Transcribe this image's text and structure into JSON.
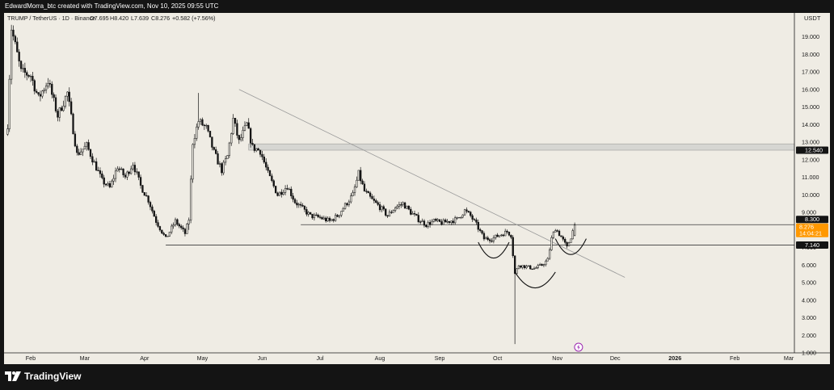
{
  "header": {
    "attribution": "EdwardMorra_btc created with TradingView.com, Nov 10, 2025 09:55 UTC"
  },
  "legend": {
    "symbol": "TRUMP / TetherUS · 1D · Binance",
    "open": "O7.695",
    "high": "H8.420",
    "low": "L7.639",
    "close": "C8.276",
    "change": "+0.582 (+7.56%)"
  },
  "footer": {
    "brand": "TradingView"
  },
  "colors": {
    "background": "#efece4",
    "candle_body": "#141414",
    "candle_up_fill": "#efece4",
    "trendline": "#9a9a9a",
    "level_line": "#3a3a3a",
    "resistance_zone": "#d6d6d2",
    "current_price_badge": "#ff9800",
    "price_badge": "#141414",
    "event_icon": "#9c27b0"
  },
  "chart_data": {
    "type": "candlestick",
    "title": "",
    "currency": "USDT",
    "ylim": [
      0.6,
      20.5
    ],
    "y_ticks": [
      "19.000",
      "18.000",
      "17.000",
      "16.000",
      "15.000",
      "14.000",
      "13.000",
      "12.000",
      "11.000",
      "10.000",
      "9.000",
      "8.000",
      "7.000",
      "6.000",
      "5.000",
      "4.000",
      "3.000",
      "2.000",
      "1.000"
    ],
    "x_ticks": [
      "Feb",
      "Mar",
      "Apr",
      "May",
      "Jun",
      "Jul",
      "Aug",
      "Sep",
      "Oct",
      "Nov",
      "Dec",
      "2026",
      "Feb",
      "Mar"
    ],
    "price_badges": [
      {
        "value": 12.54,
        "label": "12.540",
        "kind": "level"
      },
      {
        "value": 8.3,
        "label": "8.300",
        "kind": "level"
      },
      {
        "value": 8.276,
        "label": "8.276",
        "sublabel": "14:04:21",
        "kind": "current"
      },
      {
        "value": 7.14,
        "label": "7.140",
        "kind": "level"
      }
    ],
    "horizontal_levels": [
      {
        "value": 7.14,
        "from": "2025-04-12",
        "to_right_edge": true
      },
      {
        "value": 8.3,
        "from": "2025-06-21",
        "to_right_edge": true
      }
    ],
    "resistance_zone": {
      "top": 12.9,
      "bottom": 12.54,
      "from": "2025-05-25"
    },
    "trendline": {
      "from": [
        "2025-05-20",
        16.0
      ],
      "to": [
        "2025-12-06",
        5.3
      ]
    },
    "arcs": [
      {
        "from": "2025-09-21",
        "to": "2025-10-07",
        "depth_to": 6.4
      },
      {
        "from": "2025-10-10",
        "to": "2025-10-31",
        "depth_to": 4.7
      },
      {
        "from": "2025-10-31",
        "to": "2025-11-16",
        "depth_to": 6.6
      }
    ],
    "event_marker": {
      "date": "2025-11-12",
      "icon": "lightning-icon"
    },
    "price_path": [
      [
        "2025-01-20",
        14.0
      ],
      [
        "2025-01-22",
        19.5
      ],
      [
        "2025-01-27",
        17.0
      ],
      [
        "2025-02-01",
        16.8
      ],
      [
        "2025-02-05",
        15.5
      ],
      [
        "2025-02-10",
        16.5
      ],
      [
        "2025-02-15",
        14.5
      ],
      [
        "2025-02-20",
        15.8
      ],
      [
        "2025-02-25",
        12.3
      ],
      [
        "2025-03-02",
        12.8
      ],
      [
        "2025-03-06",
        11.8
      ],
      [
        "2025-03-10",
        10.8
      ],
      [
        "2025-03-14",
        10.4
      ],
      [
        "2025-03-18",
        11.6
      ],
      [
        "2025-03-22",
        11.0
      ],
      [
        "2025-03-26",
        11.8
      ],
      [
        "2025-03-30",
        10.5
      ],
      [
        "2025-04-03",
        9.7
      ],
      [
        "2025-04-07",
        8.5
      ],
      [
        "2025-04-12",
        7.5
      ],
      [
        "2025-04-17",
        8.5
      ],
      [
        "2025-04-22",
        7.8
      ],
      [
        "2025-04-24",
        8.6
      ],
      [
        "2025-04-26",
        13.0
      ],
      [
        "2025-04-29",
        14.2
      ],
      [
        "2025-05-03",
        13.8
      ],
      [
        "2025-05-07",
        12.4
      ],
      [
        "2025-05-11",
        11.4
      ],
      [
        "2025-05-14",
        12.2
      ],
      [
        "2025-05-17",
        14.3
      ],
      [
        "2025-05-20",
        13.0
      ],
      [
        "2025-05-24",
        14.0
      ],
      [
        "2025-05-27",
        12.7
      ],
      [
        "2025-05-31",
        12.5
      ],
      [
        "2025-06-04",
        11.2
      ],
      [
        "2025-06-09",
        10.0
      ],
      [
        "2025-06-14",
        10.5
      ],
      [
        "2025-06-18",
        9.6
      ],
      [
        "2025-06-22",
        9.2
      ],
      [
        "2025-06-26",
        8.8
      ],
      [
        "2025-07-01",
        8.7
      ],
      [
        "2025-07-06",
        8.5
      ],
      [
        "2025-07-10",
        8.8
      ],
      [
        "2025-07-14",
        9.4
      ],
      [
        "2025-07-18",
        10.0
      ],
      [
        "2025-07-21",
        11.2
      ],
      [
        "2025-07-24",
        10.2
      ],
      [
        "2025-07-28",
        9.7
      ],
      [
        "2025-08-01",
        9.3
      ],
      [
        "2025-08-05",
        8.8
      ],
      [
        "2025-08-09",
        9.3
      ],
      [
        "2025-08-13",
        9.5
      ],
      [
        "2025-08-17",
        9.0
      ],
      [
        "2025-08-21",
        8.6
      ],
      [
        "2025-08-25",
        8.3
      ],
      [
        "2025-08-29",
        8.5
      ],
      [
        "2025-09-02",
        8.4
      ],
      [
        "2025-09-06",
        8.5
      ],
      [
        "2025-09-10",
        8.6
      ],
      [
        "2025-09-14",
        9.1
      ],
      [
        "2025-09-17",
        8.8
      ],
      [
        "2025-09-20",
        8.3
      ],
      [
        "2025-09-24",
        7.5
      ],
      [
        "2025-09-28",
        7.5
      ],
      [
        "2025-10-02",
        7.7
      ],
      [
        "2025-10-06",
        7.9
      ],
      [
        "2025-10-08",
        7.7
      ],
      [
        "2025-10-10",
        5.5
      ],
      [
        "2025-10-12",
        6.0
      ],
      [
        "2025-10-16",
        5.9
      ],
      [
        "2025-10-20",
        5.8
      ],
      [
        "2025-10-24",
        6.0
      ],
      [
        "2025-10-27",
        6.3
      ],
      [
        "2025-10-29",
        7.5
      ],
      [
        "2025-10-31",
        8.1
      ],
      [
        "2025-11-03",
        7.6
      ],
      [
        "2025-11-06",
        7.0
      ],
      [
        "2025-11-08",
        7.6
      ],
      [
        "2025-11-10",
        8.276
      ]
    ],
    "notable_wicks": [
      {
        "date": "2025-10-10",
        "low": 1.5
      },
      {
        "date": "2025-04-29",
        "high": 15.8
      },
      {
        "date": "2025-04-24",
        "low": 8.0
      }
    ],
    "last_candle": {
      "date": "2025-11-10",
      "open": 7.695,
      "high": 8.42,
      "low": 7.639,
      "close": 8.276
    }
  }
}
